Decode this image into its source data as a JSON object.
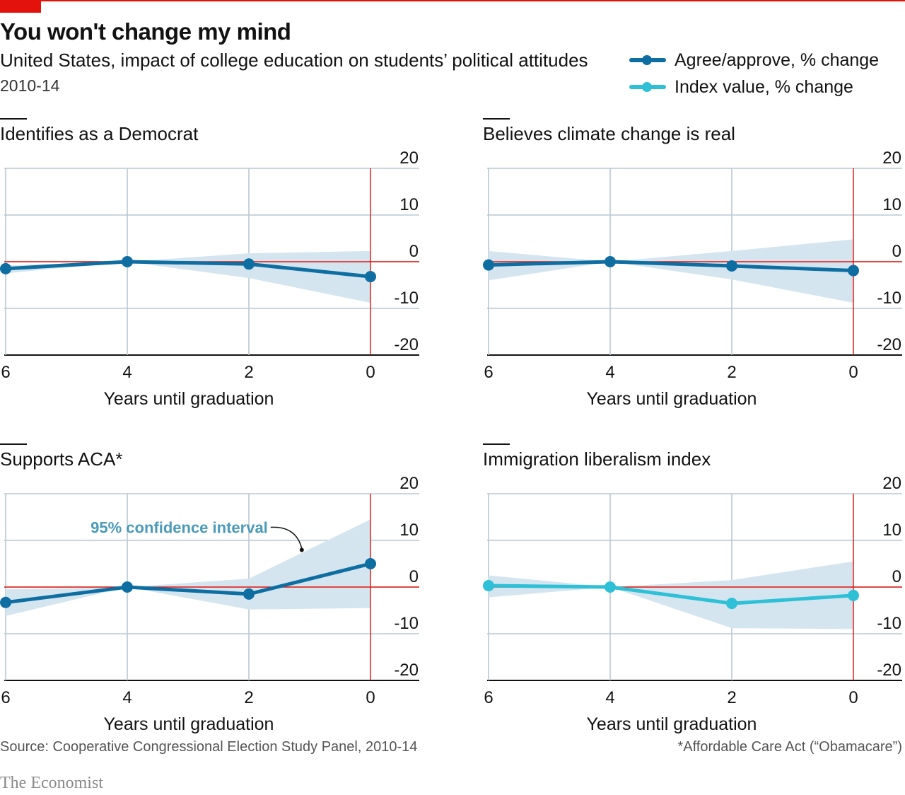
{
  "header": {
    "title": "You won't change my mind",
    "subtitle": "United States, impact of college education on students’ political attitudes",
    "date_range": "2010-14"
  },
  "legend": [
    {
      "label": "Agree/approve, % change",
      "color": "#0e6da1"
    },
    {
      "label": "Index value, % change",
      "color": "#2ec0d6"
    }
  ],
  "colors": {
    "dark_line": "#0e6da1",
    "light_line": "#2ec0d6",
    "band": "#d5e5ef",
    "grid": "#b9c8d3",
    "zero_line": "#e3120b",
    "annotation": "#4a9ab8"
  },
  "chart_data": [
    {
      "type": "line",
      "title": "Identifies as a Democrat",
      "xlabel": "Years until graduation",
      "x": [
        6,
        4,
        2,
        0
      ],
      "xticks": [
        "6",
        "4",
        "2",
        "0"
      ],
      "ylim": [
        -20,
        20
      ],
      "yticks": [
        "20",
        "10",
        "0",
        "-10",
        "-20"
      ],
      "series": [
        {
          "values": [
            -1.5,
            0,
            -0.5,
            -3.2
          ],
          "style": "dark"
        }
      ],
      "ci_upper": [
        -0.8,
        0,
        1.8,
        2.3
      ],
      "ci_lower": [
        -2.5,
        0,
        -3.5,
        -8.8
      ]
    },
    {
      "type": "line",
      "title": "Believes climate change is real",
      "xlabel": "Years until graduation",
      "x": [
        6,
        4,
        2,
        0
      ],
      "xticks": [
        "6",
        "4",
        "2",
        "0"
      ],
      "ylim": [
        -20,
        20
      ],
      "yticks": [
        "20",
        "10",
        "0",
        "-10",
        "-20"
      ],
      "series": [
        {
          "values": [
            -0.7,
            0,
            -0.9,
            -1.9
          ],
          "style": "dark"
        }
      ],
      "ci_upper": [
        2.3,
        0,
        2.3,
        4.8
      ],
      "ci_lower": [
        -4.0,
        0,
        -3.8,
        -8.8
      ]
    },
    {
      "type": "line",
      "title": "Supports ACA*",
      "xlabel": "Years until graduation",
      "x": [
        6,
        4,
        2,
        0
      ],
      "xticks": [
        "6",
        "4",
        "2",
        "0"
      ],
      "ylim": [
        -20,
        20
      ],
      "yticks": [
        "20",
        "10",
        "0",
        "-10",
        "-20"
      ],
      "series": [
        {
          "values": [
            -3.3,
            0,
            -1.5,
            5.0
          ],
          "style": "dark"
        }
      ],
      "ci_upper": [
        -0.5,
        0,
        1.8,
        14.5
      ],
      "ci_lower": [
        -6.2,
        0,
        -4.8,
        -4.5
      ],
      "annotation": {
        "text": "95% confidence interval",
        "x": 1.2,
        "y": 12.8
      }
    },
    {
      "type": "line",
      "title": "Immigration liberalism index",
      "xlabel": "Years until graduation",
      "x": [
        6,
        4,
        2,
        0
      ],
      "xticks": [
        "6",
        "4",
        "2",
        "0"
      ],
      "ylim": [
        -20,
        20
      ],
      "yticks": [
        "20",
        "10",
        "0",
        "-10",
        "-20"
      ],
      "series": [
        {
          "values": [
            0.3,
            0,
            -3.5,
            -1.8
          ],
          "style": "light"
        }
      ],
      "ci_upper": [
        2.5,
        0,
        1.5,
        5.5
      ],
      "ci_lower": [
        -2.2,
        0,
        -8.8,
        -9.0
      ]
    }
  ],
  "footer": {
    "source": "Source: Cooperative Congressional Election Study Panel, 2010-14",
    "footnote": "*Affordable Care Act (“Obamacare”)",
    "brand": "The Economist"
  }
}
